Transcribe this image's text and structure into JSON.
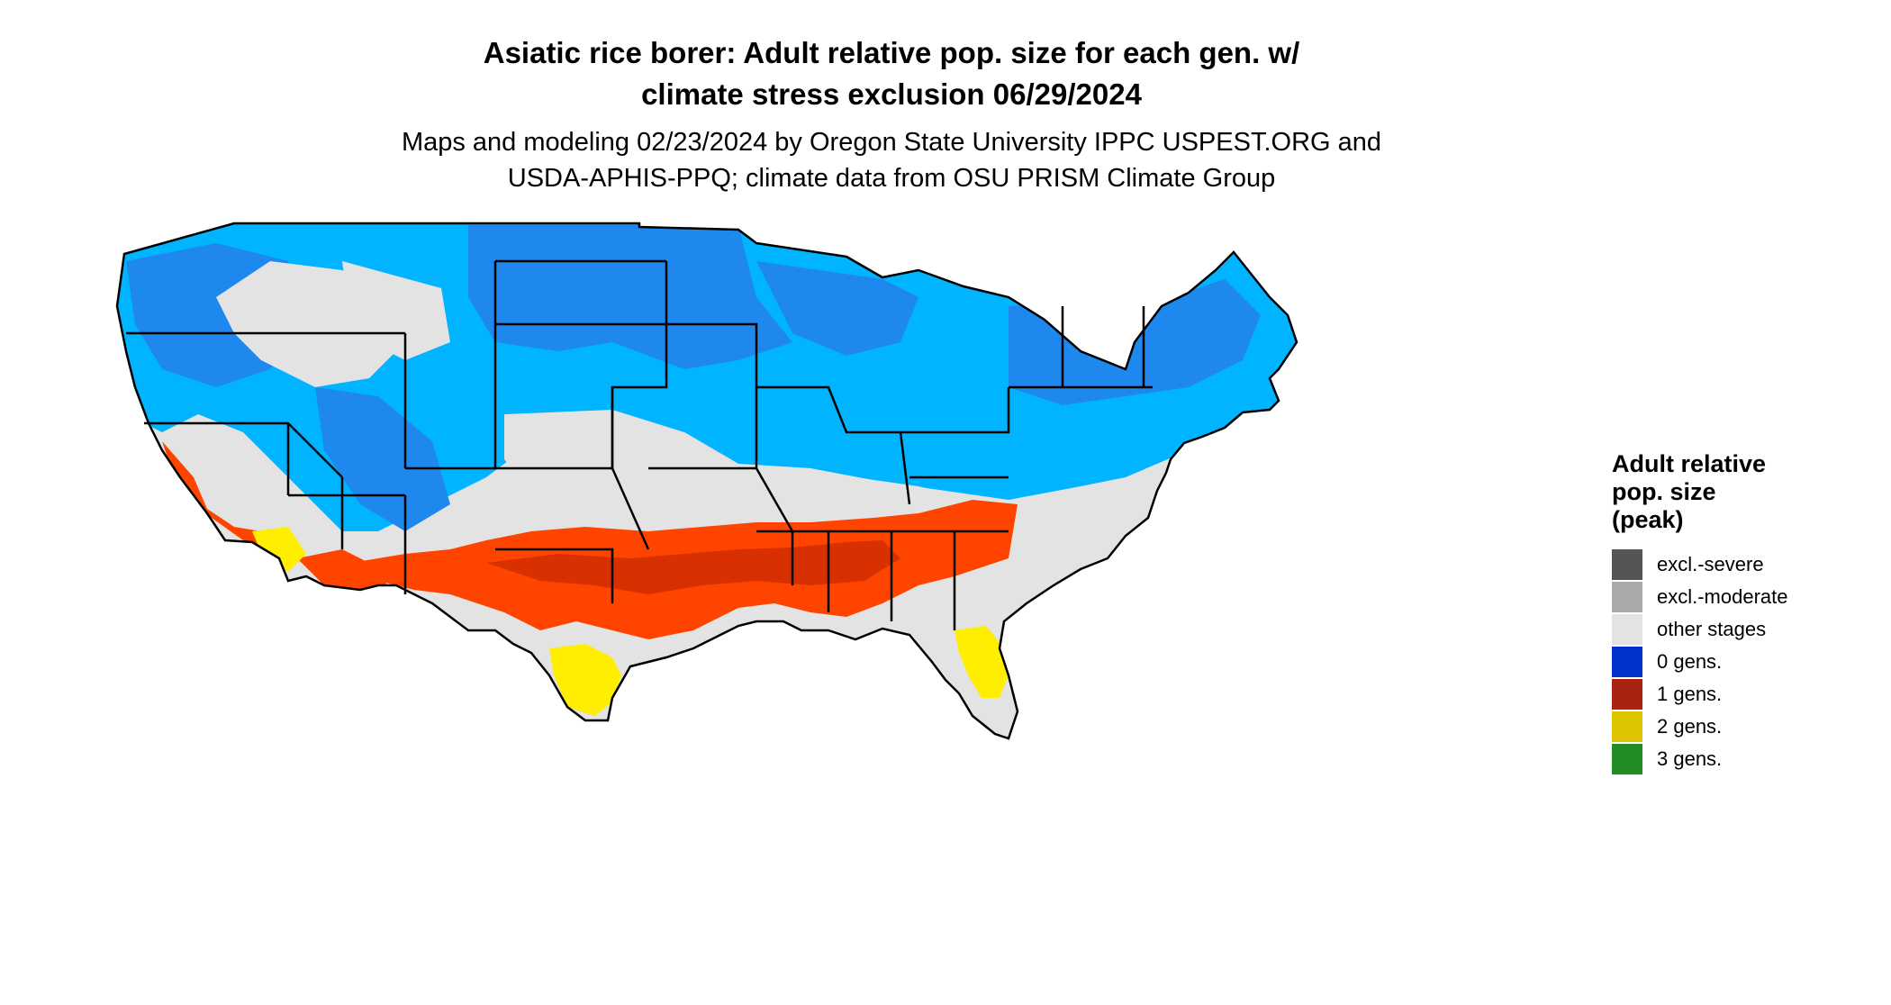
{
  "map": {
    "title_line1": "Asiatic rice borer: Adult relative pop. size for each gen. w/",
    "title_line2": "climate stress exclusion 06/29/2024",
    "subtitle_line1": "Maps and modeling 02/23/2024 by Oregon State University IPPC USPEST.ORG and",
    "subtitle_line2": "USDA-APHIS-PPQ; climate data from OSU PRISM Climate Group"
  },
  "legend": {
    "title_line1": "Adult relative",
    "title_line2": "pop. size",
    "title_line3": "(peak)",
    "items": [
      {
        "label": "excl.-severe",
        "color": "#555555"
      },
      {
        "label": "excl.-moderate",
        "color": "#aaaaaa"
      },
      {
        "label": "other stages",
        "color": "#e3e3e3"
      },
      {
        "label": "0 gens.",
        "color": "#0033cc"
      },
      {
        "label": "1 gens.",
        "color": "#aa2211"
      },
      {
        "label": "2 gens.",
        "color": "#ddc400"
      },
      {
        "label": "3 gens.",
        "color": "#228b22"
      }
    ]
  },
  "map_colors": {
    "land": "#e3e3e3",
    "light_blue": "#00b4ff",
    "mid_blue": "#1e88ee",
    "dark_blue": "#1565d8",
    "orange_red": "#ff4400",
    "dark_red": "#d83000",
    "yellow": "#ffee00",
    "border": "#000000"
  }
}
